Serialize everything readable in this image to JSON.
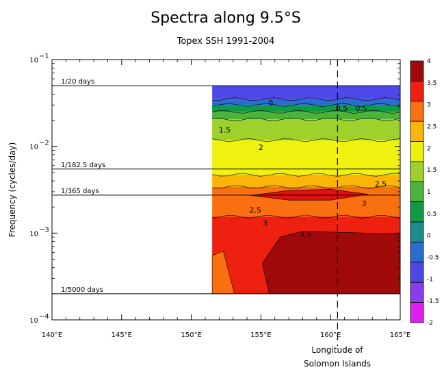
{
  "chart_data": {
    "type": "heatmap",
    "title": "Spectra along 9.5°S",
    "subtitle": "Topex SSH 1991-2004",
    "xlabel": "",
    "ylabel": "Frequency (cycles/day)",
    "xlim": [
      140,
      165
    ],
    "ylim": [
      0.0001,
      0.1
    ],
    "y_scale": "log",
    "x_ticks": [
      {
        "value": 140,
        "label": "140°E"
      },
      {
        "value": 145,
        "label": "145°E"
      },
      {
        "value": 150,
        "label": "150°E"
      },
      {
        "value": 155,
        "label": "155°E"
      },
      {
        "value": 160,
        "label": "160°E"
      },
      {
        "value": 165,
        "label": "165°E"
      }
    ],
    "y_ticks": [
      {
        "value": 0.1,
        "base": "10",
        "exp": "−1"
      },
      {
        "value": 0.01,
        "base": "10",
        "exp": "−2"
      },
      {
        "value": 0.001,
        "base": "10",
        "exp": "−3"
      },
      {
        "value": 0.0001,
        "base": "10",
        "exp": "−4"
      }
    ],
    "data_extent": {
      "lon_min": 151.5,
      "lon_max": 165,
      "freq_min": 0.0002,
      "freq_max": 0.05
    },
    "reference_lines": [
      {
        "freq": 0.05,
        "label": "1/20 days"
      },
      {
        "freq": 0.005479,
        "label": "1/182.5 days"
      },
      {
        "freq": 0.00274,
        "label": "1/365 days"
      },
      {
        "freq": 0.0002,
        "label": "1/5000 days"
      }
    ],
    "marker": {
      "lon": 160.5,
      "label_line1": "Longitude of",
      "label_line2": "Solomon Islands"
    },
    "colorbar": {
      "levels": [
        -2,
        -1.5,
        -1,
        -0.5,
        0,
        0.5,
        1,
        1.5,
        2,
        2.5,
        3,
        3.5,
        4
      ],
      "labels": [
        "-2",
        "-1.5",
        "-1",
        "-0.5",
        "0",
        "0.5",
        "1",
        "1.5",
        "2",
        "2.5",
        "3",
        "3.5",
        "4"
      ],
      "colors": [
        "#e020f0",
        "#8a3cf0",
        "#4f48e8",
        "#2a6cd0",
        "#1a8c8c",
        "#119a46",
        "#4cb33a",
        "#9ed12c",
        "#eef20e",
        "#fbb508",
        "#f87010",
        "#ee2010",
        "#a00a0a"
      ]
    },
    "bands": [
      {
        "freq_top": 0.05,
        "freq_bottom": 0.035,
        "level": -1,
        "value_label": ""
      },
      {
        "freq_top": 0.035,
        "freq_bottom": 0.03,
        "level": -0.5,
        "value_label": "0"
      },
      {
        "freq_top": 0.03,
        "freq_bottom": 0.025,
        "level": 0.5,
        "value_label": ""
      },
      {
        "freq_top": 0.025,
        "freq_bottom": 0.0205,
        "level": 1,
        "value_label": ""
      },
      {
        "freq_top": 0.0205,
        "freq_bottom": 0.0118,
        "level": 1.5,
        "value_label": "1.5"
      },
      {
        "freq_top": 0.0118,
        "freq_bottom": 0.0047,
        "level": 2,
        "value_label": "2"
      },
      {
        "freq_top": 0.0047,
        "freq_bottom": 0.0034,
        "level": 2.5,
        "value_label": "2.5"
      },
      {
        "freq_top": 0.0034,
        "freq_bottom": 0.00155,
        "level": 3,
        "value_label": "2.5"
      },
      {
        "freq_top": 0.00155,
        "freq_bottom": 0.0002,
        "level": 3.5,
        "value_label": "3"
      }
    ],
    "contour_labels": [
      {
        "lon": 155.3,
        "freq": 0.00131,
        "text": "3"
      },
      {
        "lon": 158.2,
        "freq": 0.00098,
        "text": "3.5"
      },
      {
        "lon": 160.8,
        "freq": 0.0275,
        "text": "0.5"
      },
      {
        "lon": 162.2,
        "freq": 0.0275,
        "text": "0.5"
      },
      {
        "lon": 162.4,
        "freq": 0.0022,
        "text": "3"
      },
      {
        "lon": 163.6,
        "freq": 0.0037,
        "text": "2.5"
      },
      {
        "lon": 154.6,
        "freq": 0.00185,
        "text": "2.5"
      },
      {
        "lon": 155.0,
        "freq": 0.0098,
        "text": "2"
      },
      {
        "lon": 152.4,
        "freq": 0.0155,
        "text": "1.5"
      },
      {
        "lon": 155.7,
        "freq": 0.0318,
        "text": "0"
      }
    ]
  }
}
